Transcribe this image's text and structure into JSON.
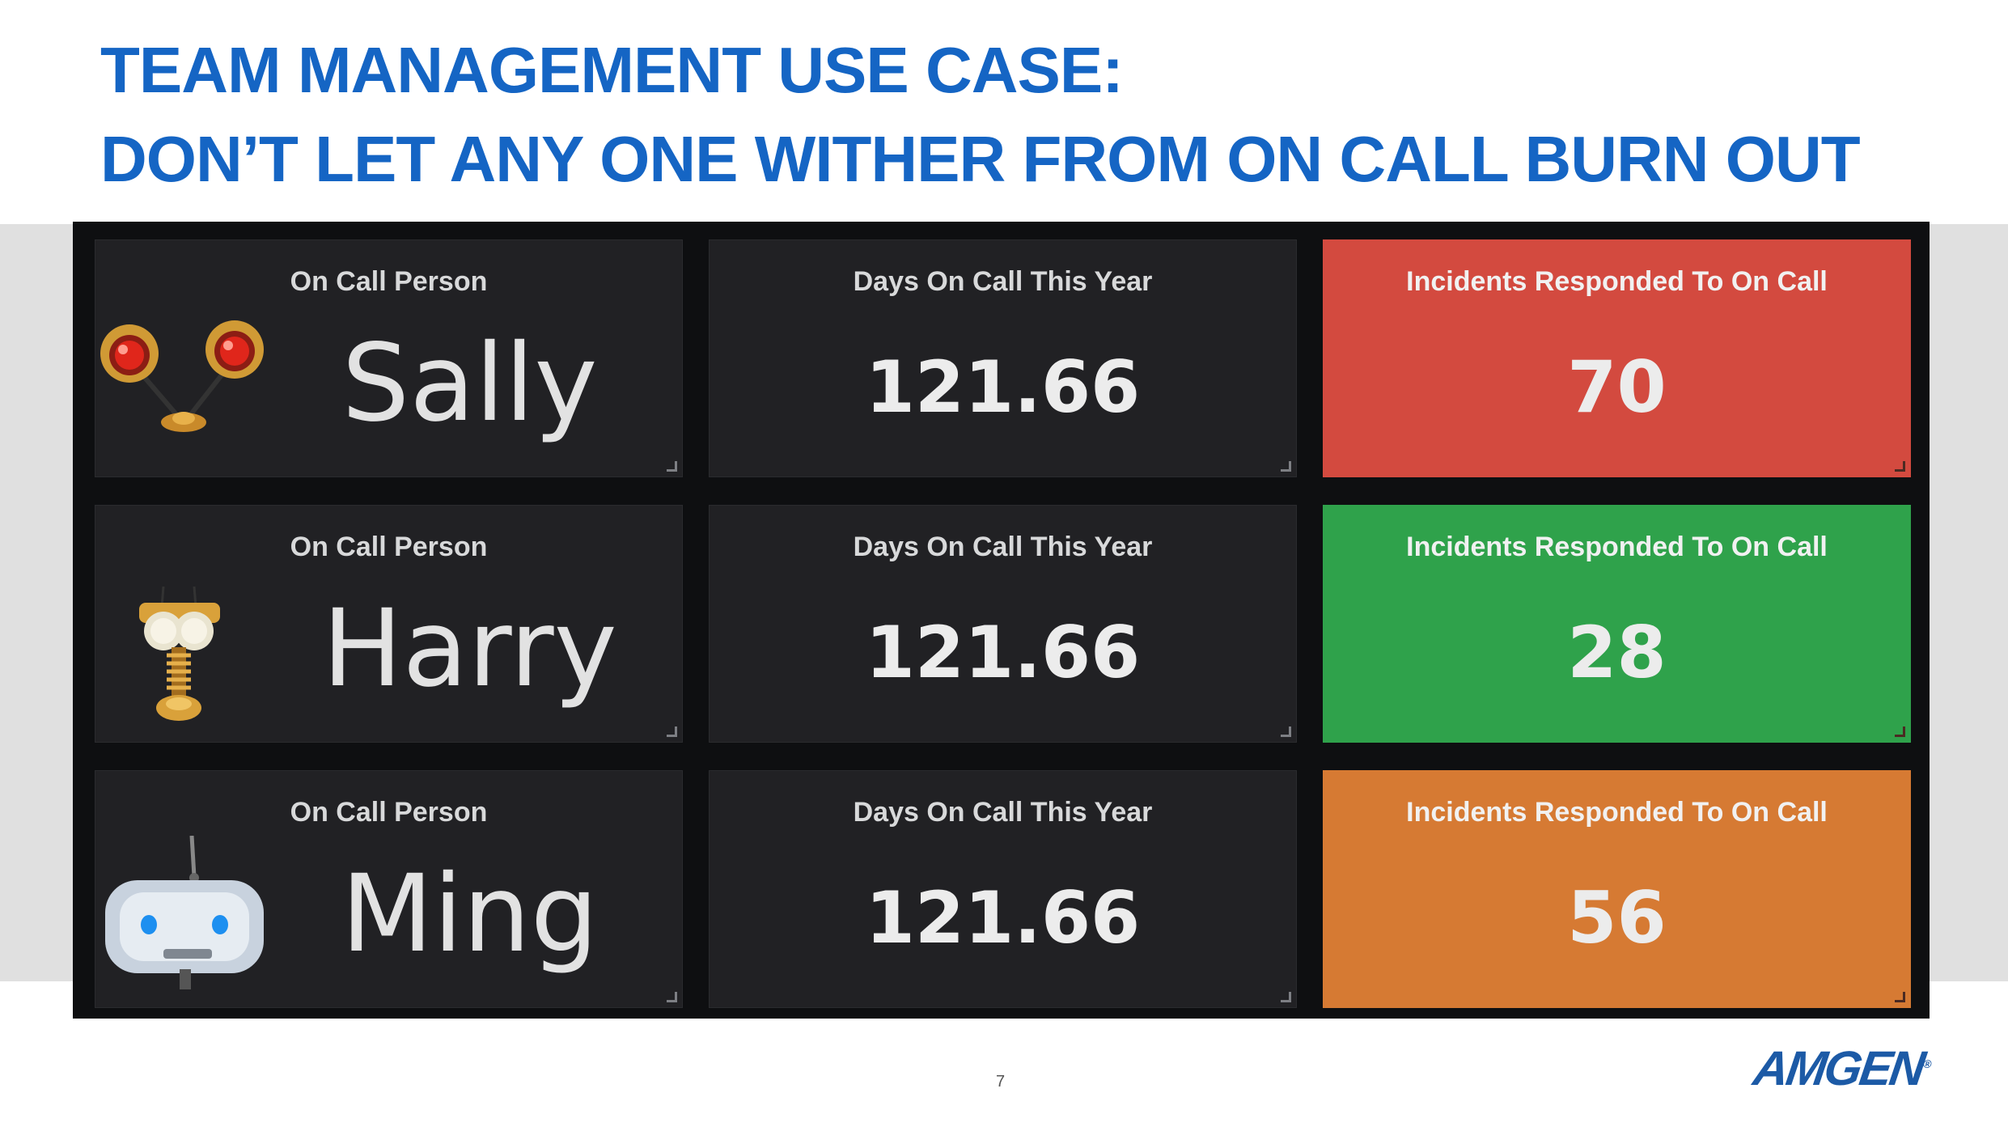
{
  "slide": {
    "title_line1": "TEAM MANAGEMENT USE CASE:",
    "title_line2": "DON’T LET ANY ONE WITHER FROM ON CALL BURN OUT",
    "page_number": "7",
    "logo_text": "AMGEN",
    "logo_mark": "®"
  },
  "dashboard": {
    "rows": [
      {
        "person_title": "On Call Person",
        "person_name": "Sally",
        "person_icon": "two-lamp-robot-icon",
        "days_title": "Days On Call This Year",
        "days_value": "121.66",
        "incidents_title": "Incidents Responded To On Call",
        "incidents_value": "70",
        "incidents_status": "red"
      },
      {
        "person_title": "On Call Person",
        "person_name": "Harry",
        "person_icon": "spring-robot-icon",
        "days_title": "Days On Call This Year",
        "days_value": "121.66",
        "incidents_title": "Incidents Responded To On Call",
        "incidents_value": "28",
        "incidents_status": "green"
      },
      {
        "person_title": "On Call Person",
        "person_name": "Ming",
        "person_icon": "hover-robot-icon",
        "days_title": "Days On Call This Year",
        "days_value": "121.66",
        "incidents_title": "Incidents Responded To On Call",
        "incidents_value": "56",
        "incidents_status": "orange"
      }
    ]
  },
  "colors": {
    "title": "#1565c4",
    "panel_bg": "#212124",
    "status_red": "#d34a3f",
    "status_green": "#2fa24b",
    "status_orange": "#d67a33"
  }
}
